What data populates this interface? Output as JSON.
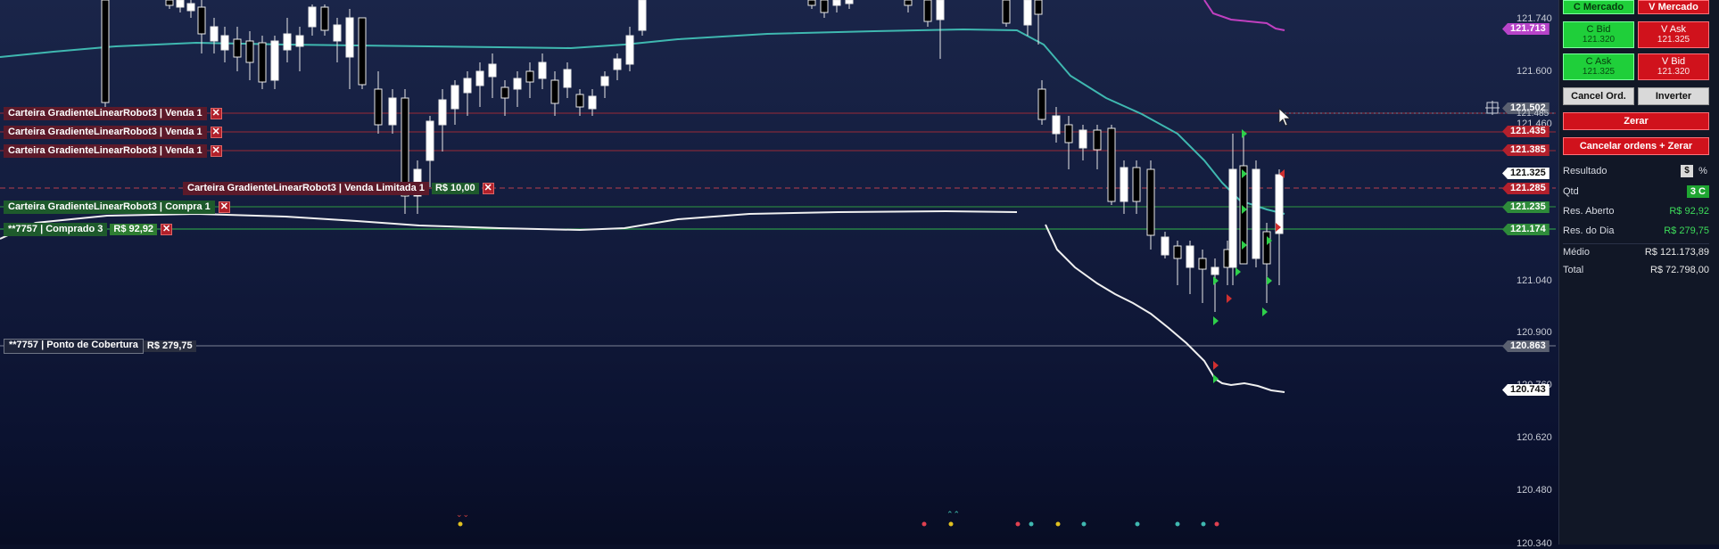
{
  "price_axis": {
    "ticks": [
      "121.740",
      "121.600",
      "121.460",
      "121.040",
      "120.900",
      "120.760",
      "120.620",
      "120.480",
      "120.340"
    ]
  },
  "price_tags": [
    {
      "label": "121.713",
      "color": "#b844c9",
      "top": 20
    },
    {
      "label": "121.502",
      "color": "#5a6070",
      "top": 93
    },
    {
      "label": "121.485",
      "color": "#5a6070",
      "top": 101
    },
    {
      "label": "121.435",
      "color": "#b3202c",
      "top": 114
    },
    {
      "label": "121.385",
      "color": "#b3202c",
      "top": 132
    },
    {
      "label": "121.325",
      "color": "#ffffff",
      "top": 151
    },
    {
      "label": "121.285",
      "color": "#b3202c",
      "top": 166
    },
    {
      "label": "121.235",
      "color": "#2e8b3a",
      "top": 183
    },
    {
      "label": "121.174",
      "color": "#2e8b3a",
      "top": 203
    },
    {
      "label": "120.863",
      "color": "#5a6070",
      "top": 310
    },
    {
      "label": "120.743",
      "color": "#ffffff",
      "top": 350
    }
  ],
  "orders": [
    {
      "label": "Carteira GradienteLinearRobot3 | Venda 1",
      "kind": "red"
    },
    {
      "label": "Carteira GradienteLinearRobot3 | Venda 1",
      "kind": "red"
    },
    {
      "label": "Carteira GradienteLinearRobot3 | Venda 1",
      "kind": "red"
    },
    {
      "label": "Carteira GradienteLinearRobot3 | Venda Limitada 1",
      "value": "R$ 10,00",
      "kind": "red"
    },
    {
      "label": "Carteira GradienteLinearRobot3 | Compra 1",
      "kind": "green"
    },
    {
      "label": "**7757 | Comprado 3",
      "value": "R$ 92,92",
      "kind": "green"
    },
    {
      "label": "**7757 | Ponto de Cobertura",
      "value": "R$ 279,75",
      "kind": "dark"
    }
  ],
  "panel": {
    "c_mercado": "C Mercado",
    "v_mercado": "V Mercado",
    "c_bid": {
      "title": "C Bid",
      "price": "121.320"
    },
    "v_ask": {
      "title": "V Ask",
      "price": "121.325"
    },
    "c_ask": {
      "title": "C Ask",
      "price": "121.325"
    },
    "v_bid": {
      "title": "V Bid",
      "price": "121.320"
    },
    "cancel_ord": "Cancel Ord.",
    "inverter": "Inverter",
    "zerar": "Zerar",
    "cancelar_zerar": "Cancelar ordens + Zerar",
    "resultado_label": "Resultado",
    "currency_btn": "$",
    "percent_btn": "%",
    "qtd_label": "Qtd",
    "qtd_value": "3 C",
    "res_aberto_label": "Res. Aberto",
    "res_aberto_value": "R$ 92,92",
    "res_dia_label": "Res. do Dia",
    "res_dia_value": "R$ 279,75",
    "medio_label": "Médio",
    "medio_value": "R$ 121.173,89",
    "total_label": "Total",
    "total_value": "R$ 72.798,00"
  },
  "colors": {
    "accent_green": "#1fcf3a",
    "accent_red": "#d0121c",
    "profit": "#3ddc5a",
    "ma_teal": "#3fb8b0",
    "ma_white": "#f0f0f0",
    "ma_magenta": "#c040c0"
  }
}
